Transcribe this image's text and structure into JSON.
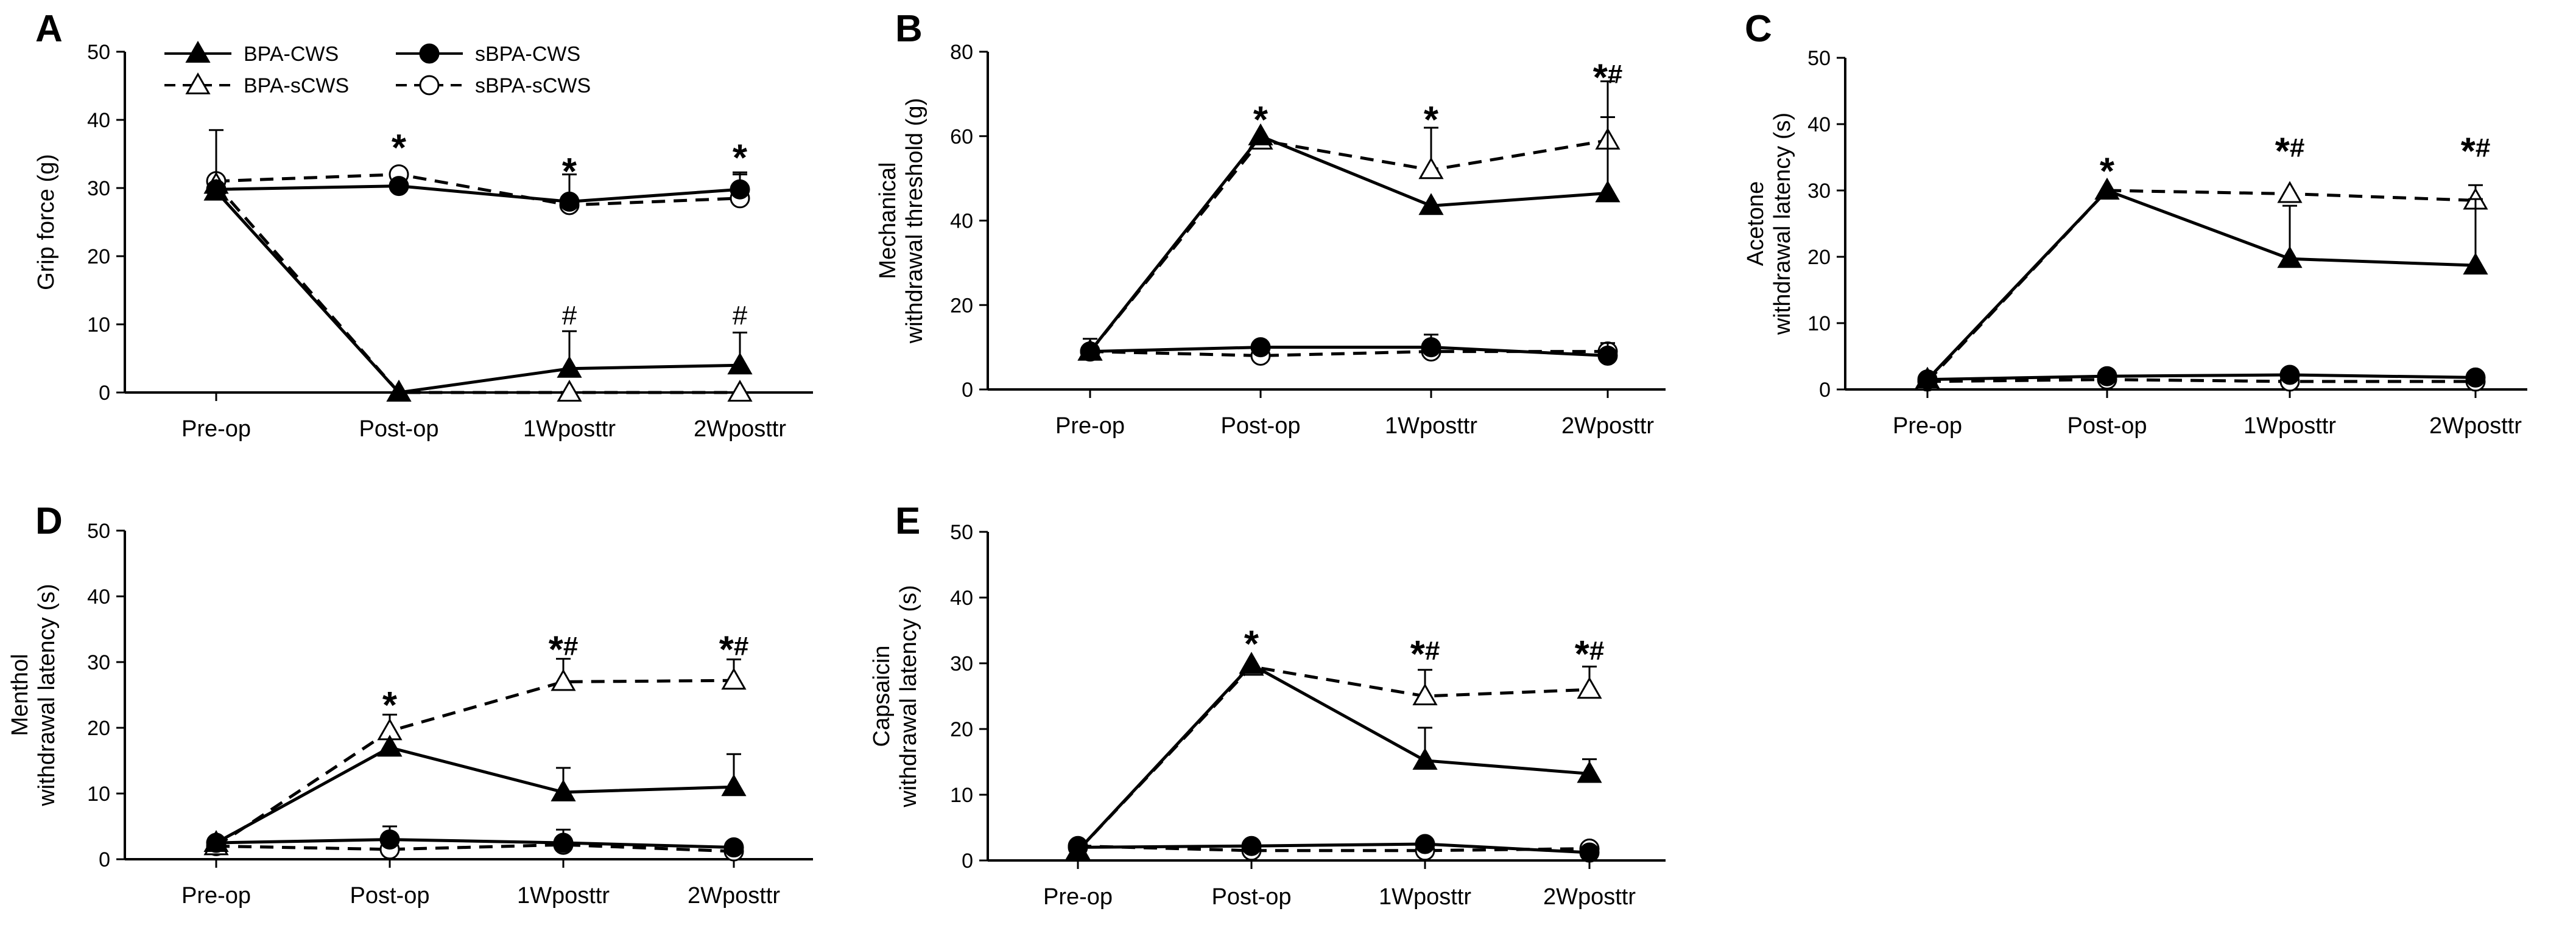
{
  "figure": {
    "categories": [
      "Pre-op",
      "Post-op",
      "1Wposttr",
      "2Wposttr"
    ],
    "legend": [
      {
        "name": "BPA-CWS",
        "marker": "triangle-filled",
        "dash": false
      },
      {
        "name": "BPA-sCWS",
        "marker": "triangle-open",
        "dash": true
      },
      {
        "name": "sBPA-CWS",
        "marker": "circle-filled",
        "dash": false
      },
      {
        "name": "sBPA-sCWS",
        "marker": "circle-open",
        "dash": true
      }
    ]
  },
  "chart_data": [
    {
      "id": "A",
      "type": "line",
      "panel_label": "A",
      "ylabel_lines": [
        "Grip force (g)"
      ],
      "ylim": [
        0,
        50
      ],
      "yticks": [
        0,
        10,
        20,
        30,
        40,
        50
      ],
      "categories": [
        "Pre-op",
        "Post-op",
        "1Wposttr",
        "2Wposttr"
      ],
      "series": [
        {
          "name": "BPA-CWS",
          "values": [
            29.5,
            0,
            3.5,
            4
          ],
          "errors": [
            0,
            0,
            5.5,
            4.8
          ]
        },
        {
          "name": "BPA-sCWS",
          "values": [
            30.5,
            0,
            0,
            0
          ],
          "errors": [
            8,
            0,
            0,
            0
          ]
        },
        {
          "name": "sBPA-CWS",
          "values": [
            29.8,
            30.3,
            28,
            29.8
          ],
          "errors": [
            0,
            0,
            4,
            2.5
          ]
        },
        {
          "name": "sBPA-sCWS",
          "values": [
            31,
            32,
            27.5,
            28.5
          ],
          "errors": [
            0,
            0,
            0,
            3.5
          ]
        }
      ],
      "annotations": [
        {
          "category": "Post-op",
          "y": 36,
          "text": "*"
        },
        {
          "category": "1Wposttr",
          "y": 32.5,
          "text": "*"
        },
        {
          "category": "2Wposttr",
          "y": 34.5,
          "text": "*"
        },
        {
          "category": "1Wposttr",
          "y": 10,
          "text": "#"
        },
        {
          "category": "2Wposttr",
          "y": 10,
          "text": "#"
        }
      ]
    },
    {
      "id": "B",
      "type": "line",
      "panel_label": "B",
      "ylabel_lines": [
        "Mechanical",
        "withdrawal threshold (g)"
      ],
      "ylim": [
        0,
        80
      ],
      "yticks": [
        0,
        20,
        40,
        60,
        80
      ],
      "categories": [
        "Pre-op",
        "Post-op",
        "1Wposttr",
        "2Wposttr"
      ],
      "series": [
        {
          "name": "BPA-CWS",
          "values": [
            9,
            60,
            43.5,
            46.5
          ],
          "errors": [
            0,
            0,
            0,
            18
          ]
        },
        {
          "name": "BPA-sCWS",
          "values": [
            9,
            59,
            52,
            59
          ],
          "errors": [
            0,
            0,
            10,
            14
          ]
        },
        {
          "name": "sBPA-CWS",
          "values": [
            9,
            10,
            10,
            8
          ],
          "errors": [
            3,
            0,
            3,
            3
          ]
        },
        {
          "name": "sBPA-sCWS",
          "values": [
            9,
            8,
            9,
            9
          ],
          "errors": [
            0,
            0,
            0,
            0
          ]
        }
      ],
      "annotations": [
        {
          "category": "Post-op",
          "y": 64,
          "text": "*"
        },
        {
          "category": "1Wposttr",
          "y": 64,
          "text": "*"
        },
        {
          "category": "2Wposttr",
          "y": 74,
          "text": "*#"
        }
      ]
    },
    {
      "id": "C",
      "type": "line",
      "panel_label": "C",
      "ylabel_lines": [
        "Acetone",
        "withdrawal latency (s)"
      ],
      "ylim": [
        0,
        50
      ],
      "yticks": [
        0,
        10,
        20,
        30,
        40,
        50
      ],
      "categories": [
        "Pre-op",
        "Post-op",
        "1Wposttr",
        "2Wposttr"
      ],
      "series": [
        {
          "name": "BPA-CWS",
          "values": [
            1.5,
            30,
            19.7,
            18.7
          ],
          "errors": [
            0,
            0,
            8,
            10
          ]
        },
        {
          "name": "BPA-sCWS",
          "values": [
            1.2,
            30,
            29.5,
            28.5
          ],
          "errors": [
            0,
            0,
            0,
            2.3
          ]
        },
        {
          "name": "sBPA-CWS",
          "values": [
            1.5,
            2,
            2.2,
            1.8
          ],
          "errors": [
            0,
            0,
            0,
            0
          ]
        },
        {
          "name": "sBPA-sCWS",
          "values": [
            1.2,
            1.5,
            1.2,
            1.2
          ],
          "errors": [
            0,
            0,
            0,
            0
          ]
        }
      ],
      "annotations": [
        {
          "category": "Post-op",
          "y": 33,
          "text": "*"
        },
        {
          "category": "1Wposttr",
          "y": 36,
          "text": "*#"
        },
        {
          "category": "2Wposttr",
          "y": 36,
          "text": "*#"
        }
      ]
    },
    {
      "id": "D",
      "type": "line",
      "panel_label": "D",
      "ylabel_lines": [
        "Menthol",
        "withdrawal latency (s)"
      ],
      "ylim": [
        0,
        50
      ],
      "yticks": [
        0,
        10,
        20,
        30,
        40,
        50
      ],
      "categories": [
        "Pre-op",
        "Post-op",
        "1Wposttr",
        "2Wposttr"
      ],
      "series": [
        {
          "name": "BPA-CWS",
          "values": [
            2.5,
            17,
            10.2,
            11
          ],
          "errors": [
            0,
            0,
            3.7,
            5
          ]
        },
        {
          "name": "BPA-sCWS",
          "values": [
            2,
            19.5,
            27,
            27.2
          ],
          "errors": [
            0,
            2.5,
            3.5,
            3.2
          ]
        },
        {
          "name": "sBPA-CWS",
          "values": [
            2.5,
            3,
            2.5,
            1.8
          ],
          "errors": [
            0,
            2,
            2,
            0
          ]
        },
        {
          "name": "sBPA-sCWS",
          "values": [
            2,
            1.5,
            2.2,
            1.2
          ],
          "errors": [
            0,
            0,
            0,
            0
          ]
        }
      ],
      "annotations": [
        {
          "category": "Post-op",
          "y": 23.5,
          "text": "*"
        },
        {
          "category": "1Wposttr",
          "y": 32,
          "text": "*#"
        },
        {
          "category": "2Wposttr",
          "y": 32,
          "text": "*#"
        }
      ]
    },
    {
      "id": "E",
      "type": "line",
      "panel_label": "E",
      "ylabel_lines": [
        "Capsaicin",
        "withdrawal latency (s)"
      ],
      "ylim": [
        0,
        50
      ],
      "yticks": [
        0,
        10,
        20,
        30,
        40,
        50
      ],
      "categories": [
        "Pre-op",
        "Post-op",
        "1Wposttr",
        "2Wposttr"
      ],
      "series": [
        {
          "name": "BPA-CWS",
          "values": [
            1.5,
            29.8,
            15.2,
            13.2
          ],
          "errors": [
            0,
            0,
            5,
            2.2
          ]
        },
        {
          "name": "BPA-sCWS",
          "values": [
            1.5,
            29.5,
            25,
            26
          ],
          "errors": [
            0,
            0,
            4,
            3.5
          ]
        },
        {
          "name": "sBPA-CWS",
          "values": [
            2,
            2.2,
            2.5,
            1.2
          ],
          "errors": [
            0,
            0,
            0,
            0
          ]
        },
        {
          "name": "sBPA-sCWS",
          "values": [
            2.2,
            1.5,
            1.5,
            1.8
          ],
          "errors": [
            0,
            0,
            0,
            0
          ]
        }
      ],
      "annotations": [
        {
          "category": "Post-op",
          "y": 33,
          "text": "*"
        },
        {
          "category": "1Wposttr",
          "y": 31.5,
          "text": "*#"
        },
        {
          "category": "2Wposttr",
          "y": 31.5,
          "text": "*#"
        }
      ]
    }
  ]
}
